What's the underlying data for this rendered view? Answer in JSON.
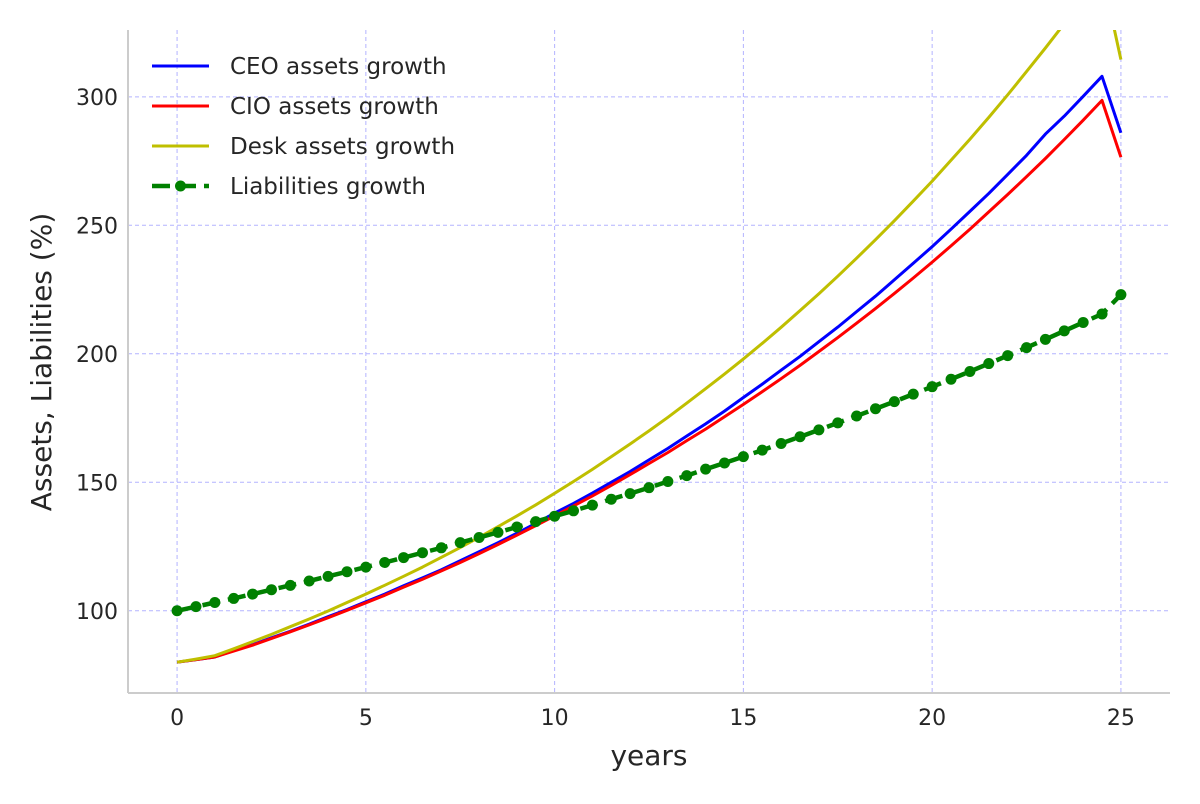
{
  "chart_data": {
    "type": "line",
    "title": "",
    "xlabel": "years",
    "ylabel": "Assets, Liabilities (%)",
    "xlim": [
      -1.3,
      26.3
    ],
    "ylim": [
      68,
      326
    ],
    "xticks": [
      0,
      5,
      10,
      15,
      20,
      25
    ],
    "yticks": [
      100,
      150,
      200,
      250,
      300
    ],
    "grid": true,
    "grid_color": "#b3b3ff",
    "legend_position": "top-left",
    "x": [
      0,
      0.5,
      1,
      1.5,
      2,
      2.5,
      3,
      3.5,
      4,
      4.5,
      5,
      5.5,
      6,
      6.5,
      7,
      7.5,
      8,
      8.5,
      9,
      9.5,
      10,
      10.5,
      11,
      11.5,
      12,
      12.5,
      13,
      13.5,
      14,
      14.5,
      15,
      15.5,
      16,
      16.5,
      17,
      17.5,
      18,
      18.5,
      19,
      19.5,
      20,
      20.5,
      21,
      21.5,
      22,
      22.5,
      23,
      23.5,
      24,
      24.5,
      25
    ],
    "series": [
      {
        "name": "CEO assets growth",
        "color": "#0000ff",
        "style": "solid",
        "markers": false,
        "values": [
          80,
          81,
          82,
          84.5,
          86.8,
          89.5,
          92,
          94.8,
          97.7,
          100.5,
          103.5,
          106.5,
          109.7,
          112.8,
          116,
          119.5,
          123,
          126.5,
          130.2,
          134,
          138,
          141.8,
          145.8,
          150,
          154.2,
          158.7,
          163.2,
          168,
          172.7,
          177.7,
          183,
          188.2,
          193.6,
          199,
          204.7,
          210.4,
          216.4,
          222.4,
          228.8,
          235.2,
          241.7,
          248.5,
          255.4,
          262.4,
          269.8,
          277.2,
          285.5,
          292.5,
          300.2,
          308,
          286
        ]
      },
      {
        "name": "CIO assets growth",
        "color": "#ff0000",
        "style": "solid",
        "markers": false,
        "values": [
          80,
          81,
          82,
          84.3,
          86.6,
          89.2,
          91.8,
          94.5,
          97.3,
          100.2,
          103.1,
          106,
          109.2,
          112.3,
          115.5,
          118.8,
          122.2,
          125.8,
          129.4,
          133.1,
          136.9,
          140.8,
          144.7,
          148.8,
          153,
          157.3,
          161.6,
          166.2,
          170.7,
          175.5,
          180.3,
          185.3,
          190.3,
          195.5,
          200.9,
          206.3,
          211.9,
          217.6,
          223.5,
          229.5,
          235.7,
          242,
          248.5,
          255.2,
          262,
          268.9,
          276,
          283.4,
          290.9,
          298.6,
          276.5
        ]
      },
      {
        "name": "Desk assets growth",
        "color": "#bfbf00",
        "style": "solid",
        "markers": false,
        "values": [
          80,
          81.2,
          82.5,
          85.2,
          88,
          90.8,
          93.8,
          96.8,
          99.9,
          103.2,
          106.5,
          109.9,
          113.4,
          117,
          120.8,
          124.6,
          128.6,
          132.7,
          136.9,
          141.2,
          145.7,
          150.3,
          155,
          159.9,
          164.9,
          170,
          175.3,
          180.8,
          186.4,
          192.1,
          198,
          204.1,
          210.3,
          216.8,
          223.4,
          230.2,
          237.2,
          244.4,
          251.8,
          259.4,
          267.2,
          275.3,
          283.5,
          292,
          300.8,
          309.8,
          319,
          328.5,
          338.3,
          348.3,
          314.5
        ]
      },
      {
        "name": "Liabilities growth",
        "color": "#008000",
        "style": "dashed",
        "markers": true,
        "values": [
          100,
          101.6,
          103.2,
          104.8,
          106.5,
          108.2,
          109.9,
          111.6,
          113.4,
          115.2,
          117,
          118.8,
          120.7,
          122.6,
          124.5,
          126.5,
          128.5,
          130.5,
          132.6,
          134.7,
          136.8,
          138.9,
          141.1,
          143.4,
          145.6,
          147.9,
          150.3,
          152.6,
          155.1,
          157.5,
          160,
          162.5,
          165.1,
          167.7,
          170.4,
          173.1,
          175.8,
          178.6,
          181.4,
          184.3,
          187.2,
          190.1,
          193.1,
          196.2,
          199.3,
          202.4,
          205.6,
          208.9,
          212.2,
          215.5,
          223
        ]
      }
    ]
  }
}
